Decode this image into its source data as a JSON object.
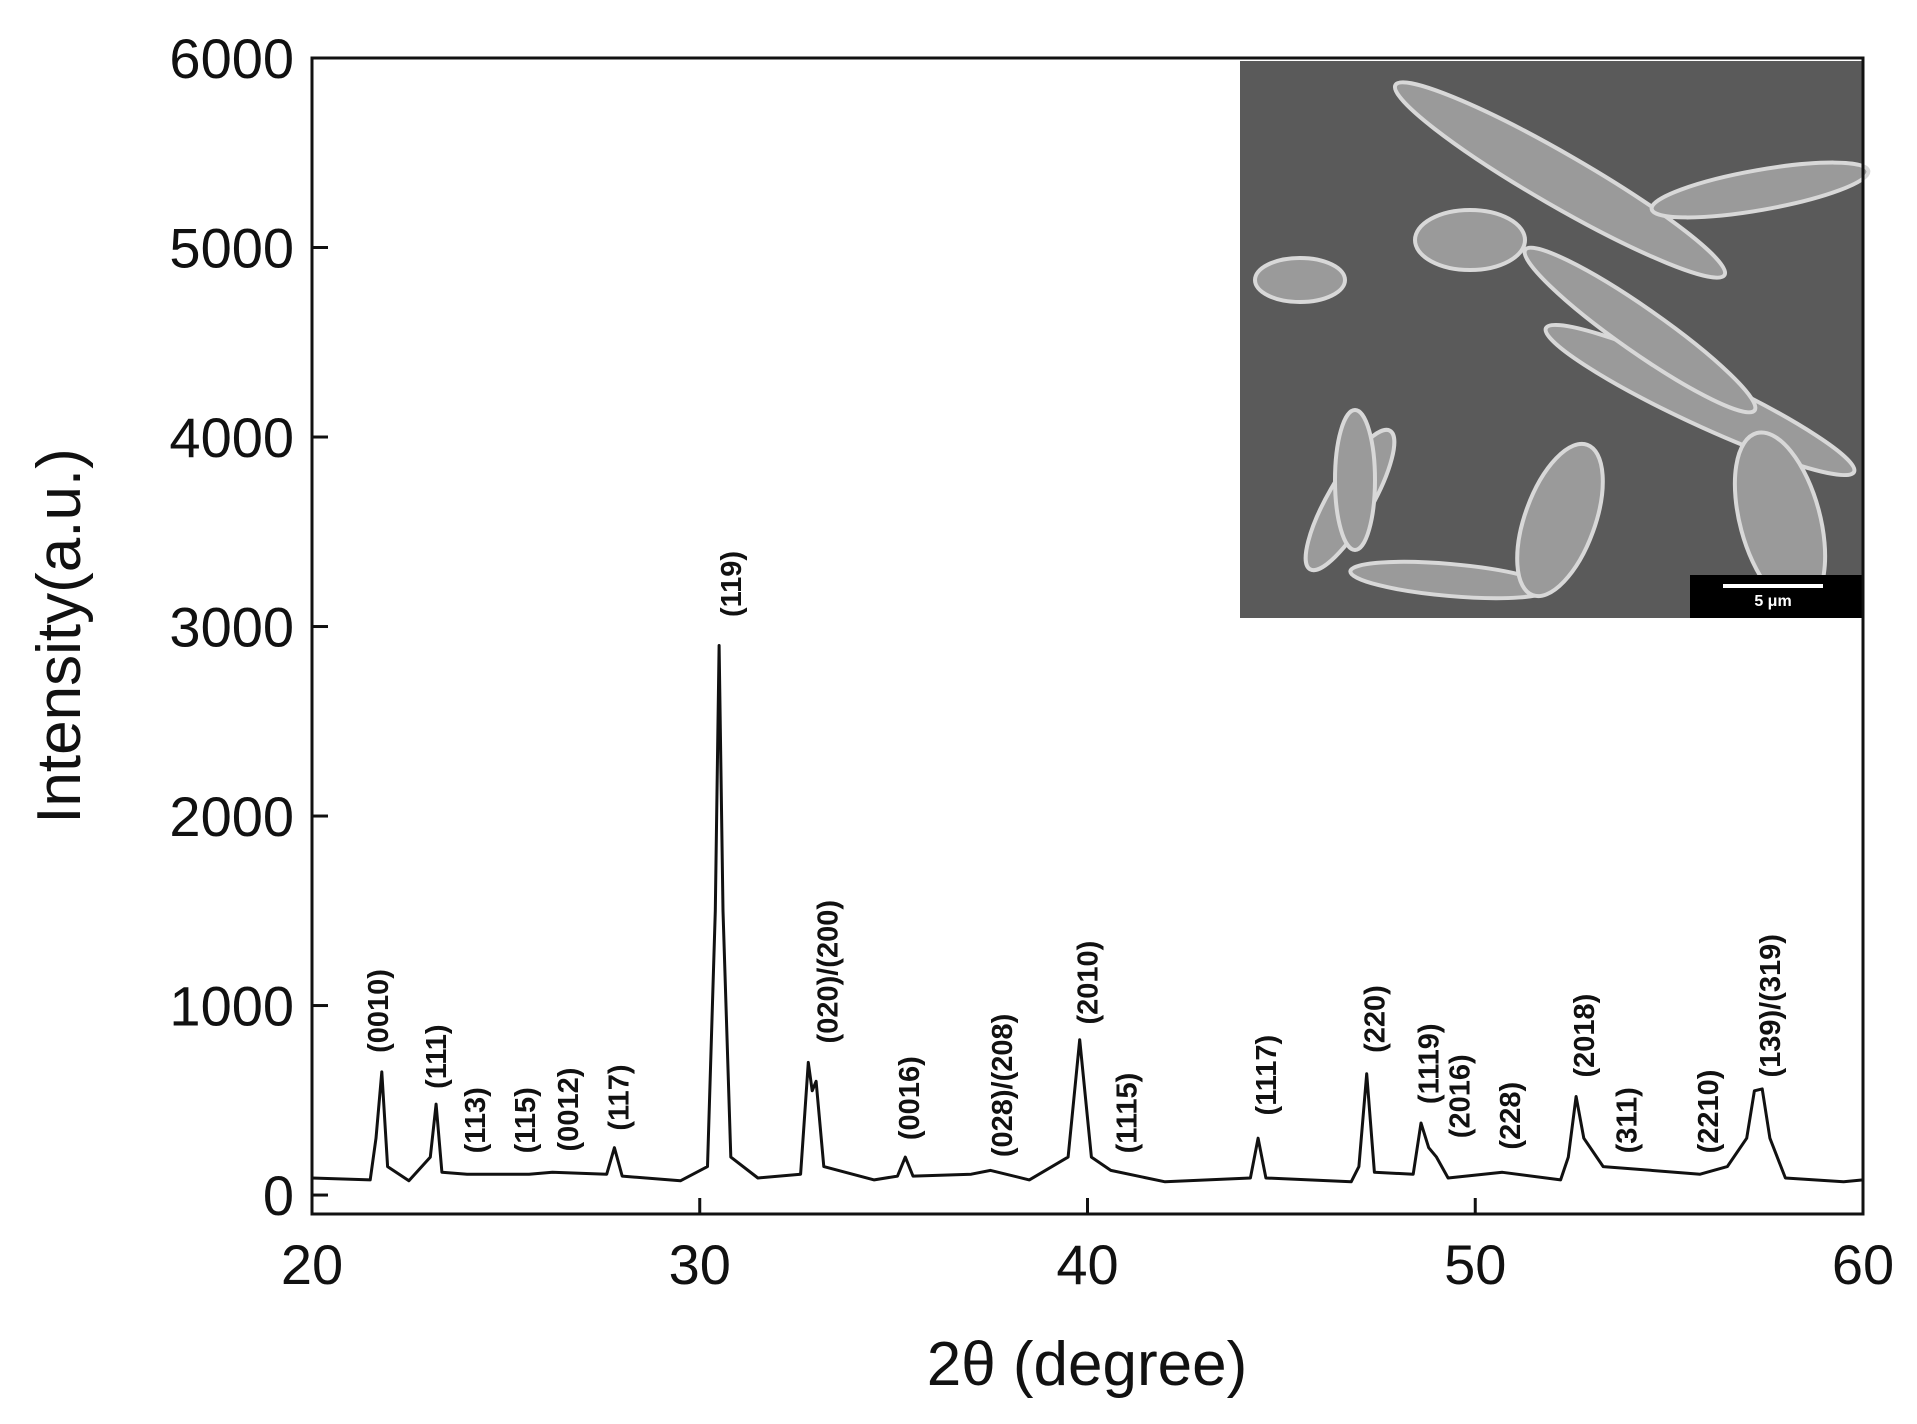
{
  "chart_data": {
    "type": "line",
    "x_label": "2θ (degree)",
    "y_label": "Intensity(a.u.)",
    "xlim": [
      20,
      60
    ],
    "xticks": [
      20,
      30,
      40,
      50,
      60
    ],
    "ylim": [
      -100,
      6000
    ],
    "yticks": [
      0,
      1000,
      2000,
      3000,
      4000,
      5000,
      6000
    ],
    "color": "#111111",
    "x": [
      20,
      21.5,
      21.65,
      21.8,
      21.95,
      22.5,
      23.05,
      23.2,
      23.35,
      24.0,
      25.6,
      26.2,
      27.6,
      27.8,
      28.0,
      29.5,
      30.2,
      30.4,
      30.5,
      30.6,
      30.8,
      31.5,
      32.6,
      32.8,
      32.9,
      33.0,
      33.2,
      34.5,
      35.1,
      35.3,
      35.5,
      37.0,
      37.5,
      38.5,
      39.5,
      39.8,
      40.1,
      40.6,
      42,
      44.2,
      44.4,
      44.6,
      46.8,
      47.0,
      47.2,
      47.4,
      48.4,
      48.6,
      48.8,
      49.0,
      49.3,
      50.7,
      52.2,
      52.4,
      52.6,
      52.8,
      53.3,
      55.8,
      56.5,
      57.0,
      57.2,
      57.4,
      57.6,
      58,
      59.5,
      60
    ],
    "values": [
      90,
      80,
      300,
      650,
      150,
      75,
      200,
      480,
      120,
      110,
      110,
      120,
      110,
      250,
      100,
      75,
      150,
      1500,
      2900,
      1500,
      200,
      90,
      110,
      700,
      550,
      600,
      150,
      80,
      100,
      200,
      100,
      110,
      130,
      80,
      200,
      820,
      200,
      130,
      70,
      90,
      300,
      90,
      70,
      150,
      640,
      120,
      110,
      380,
      250,
      200,
      90,
      120,
      80,
      200,
      520,
      300,
      150,
      110,
      150,
      300,
      550,
      560,
      300,
      90,
      70,
      80
    ],
    "annotations": [
      {
        "text": "(0010)",
        "x": 21.7,
        "y": 750
      },
      {
        "text": "(111)",
        "x": 23.2,
        "y": 560
      },
      {
        "text": "(113)",
        "x": 24.2,
        "y": 220
      },
      {
        "text": "(115)",
        "x": 25.5,
        "y": 220
      },
      {
        "text": "(0012)",
        "x": 26.6,
        "y": 230
      },
      {
        "text": "(117)",
        "x": 27.9,
        "y": 340
      },
      {
        "text": "(119)",
        "x": 30.8,
        "y": 3050
      },
      {
        "text": "(020)/(200)",
        "x": 33.3,
        "y": 800
      },
      {
        "text": "(0016)",
        "x": 35.4,
        "y": 290
      },
      {
        "text": "(028)/(208)",
        "x": 37.8,
        "y": 200
      },
      {
        "text": "(2010)",
        "x": 40.0,
        "y": 900
      },
      {
        "text": "(1115)",
        "x": 41.0,
        "y": 220
      },
      {
        "text": "(1117)",
        "x": 44.6,
        "y": 420
      },
      {
        "text": "(220)",
        "x": 47.4,
        "y": 750
      },
      {
        "text": "(1119)",
        "x": 48.8,
        "y": 480
      },
      {
        "text": "(2016)",
        "x": 49.6,
        "y": 300
      },
      {
        "text": "(228)",
        "x": 50.9,
        "y": 240
      },
      {
        "text": "(2018)",
        "x": 52.8,
        "y": 620
      },
      {
        "text": "(311)",
        "x": 53.9,
        "y": 220
      },
      {
        "text": "(2210)",
        "x": 56.0,
        "y": 220
      },
      {
        "text": "(139)/(319)",
        "x": 57.6,
        "y": 620
      }
    ],
    "inset_scale_bar": "5 μm"
  }
}
